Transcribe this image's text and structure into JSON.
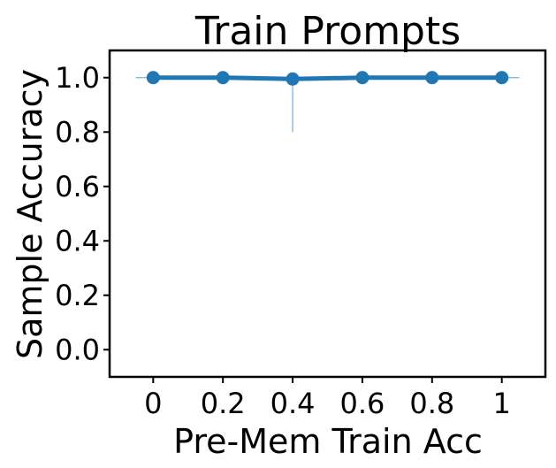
{
  "chart_data": {
    "type": "line",
    "title": "Train Prompts",
    "xlabel": "Pre-Mem Train Acc",
    "ylabel": "Sample Accuracy",
    "x": [
      0,
      0.2,
      0.4,
      0.6,
      0.8,
      1
    ],
    "x_tick_labels": [
      "0",
      "0.2",
      "0.4",
      "0.6",
      "0.8",
      "1"
    ],
    "y_ticks": [
      0.0,
      0.2,
      0.4,
      0.6,
      0.8,
      1.0
    ],
    "y_tick_labels": [
      "0.0",
      "0.2",
      "0.4",
      "0.6",
      "0.8",
      "1.0"
    ],
    "xlim": [
      -0.125,
      1.125
    ],
    "ylim": [
      -0.1,
      1.1
    ],
    "series": [
      {
        "values": [
          1.0,
          1.0,
          0.995,
          1.0,
          1.0,
          1.0
        ],
        "error_lower": [
          1.0,
          1.0,
          0.8,
          1.0,
          1.0,
          1.0
        ],
        "error_upper": [
          1.0,
          1.0,
          1.0,
          1.0,
          1.0,
          1.0
        ],
        "color": "#1f77b4"
      }
    ],
    "grid": false,
    "legend": "none"
  }
}
